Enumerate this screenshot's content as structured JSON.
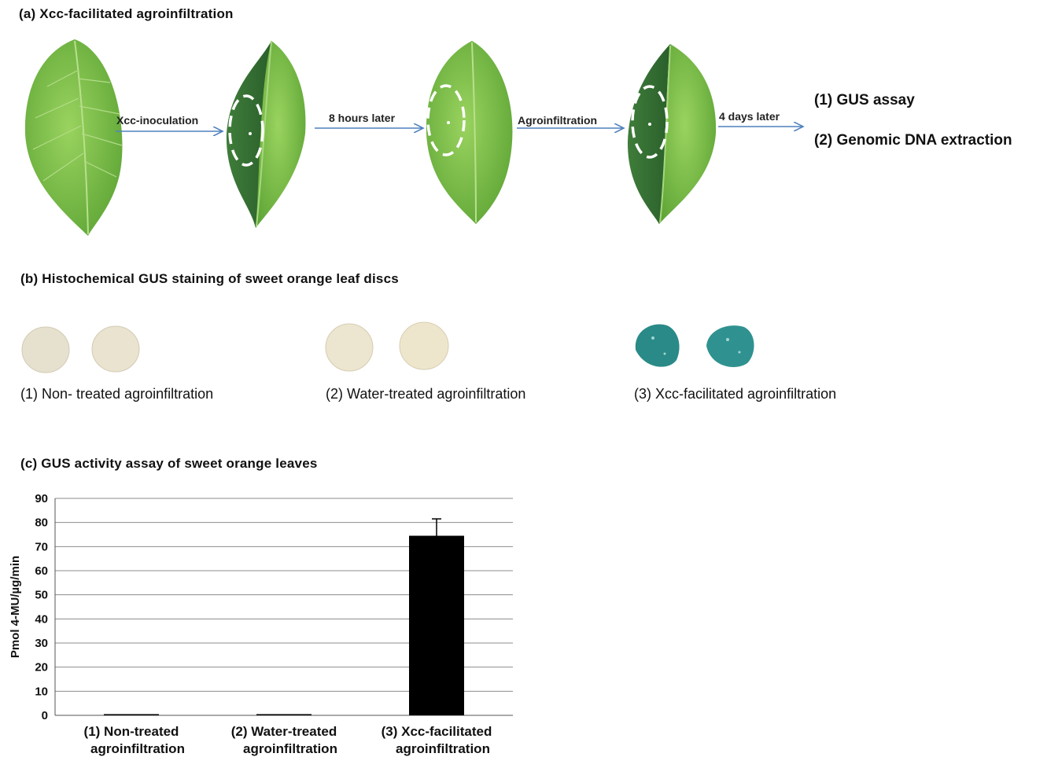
{
  "panel_a": {
    "title": "(a) Xcc-facilitated agroinfiltration",
    "steps": [
      {
        "label": "Xcc-inoculation"
      },
      {
        "label": "8 hours later"
      },
      {
        "label": "Agroinfiltration"
      },
      {
        "label": "4 days later"
      }
    ],
    "outcomes": [
      "(1) GUS assay",
      "(2) Genomic DNA extraction"
    ],
    "colors": {
      "leaf_light": "#7cc443",
      "leaf_dark": "#2f6b2e",
      "arrow": "#4f81bd"
    }
  },
  "panel_b": {
    "title": "(b) Histochemical GUS  staining of sweet orange leaf discs",
    "groups": [
      {
        "caption": "(1) Non- treated agroinfiltration",
        "disc_color": "#e6e1cf"
      },
      {
        "caption": "(2) Water-treated agroinfiltration",
        "disc_color": "#ece5cf"
      },
      {
        "caption": "(3) Xcc-facilitated agroinfiltration",
        "disc_color": "#2a8a88"
      }
    ]
  },
  "panel_c": {
    "title": "(c) GUS  activity assay of sweet orange leaves"
  },
  "chart_data": {
    "type": "bar",
    "title": "(c) GUS  activity assay of sweet orange leaves",
    "ylabel": "Pmol 4-MU/µg/min",
    "xlabel": "",
    "ylim": [
      0,
      90
    ],
    "yticks": [
      0,
      10,
      20,
      30,
      40,
      50,
      60,
      70,
      80,
      90
    ],
    "categories": [
      [
        "(1) Non-treated",
        "agroinfiltration"
      ],
      [
        "(2) Water-treated",
        "agroinfiltration"
      ],
      [
        "(3) Xcc-facilitated",
        "agroinfiltration"
      ]
    ],
    "values": [
      0.5,
      0.5,
      74.5
    ],
    "errors": [
      0,
      0,
      7
    ],
    "bar_color": "#000000",
    "grid": true
  }
}
